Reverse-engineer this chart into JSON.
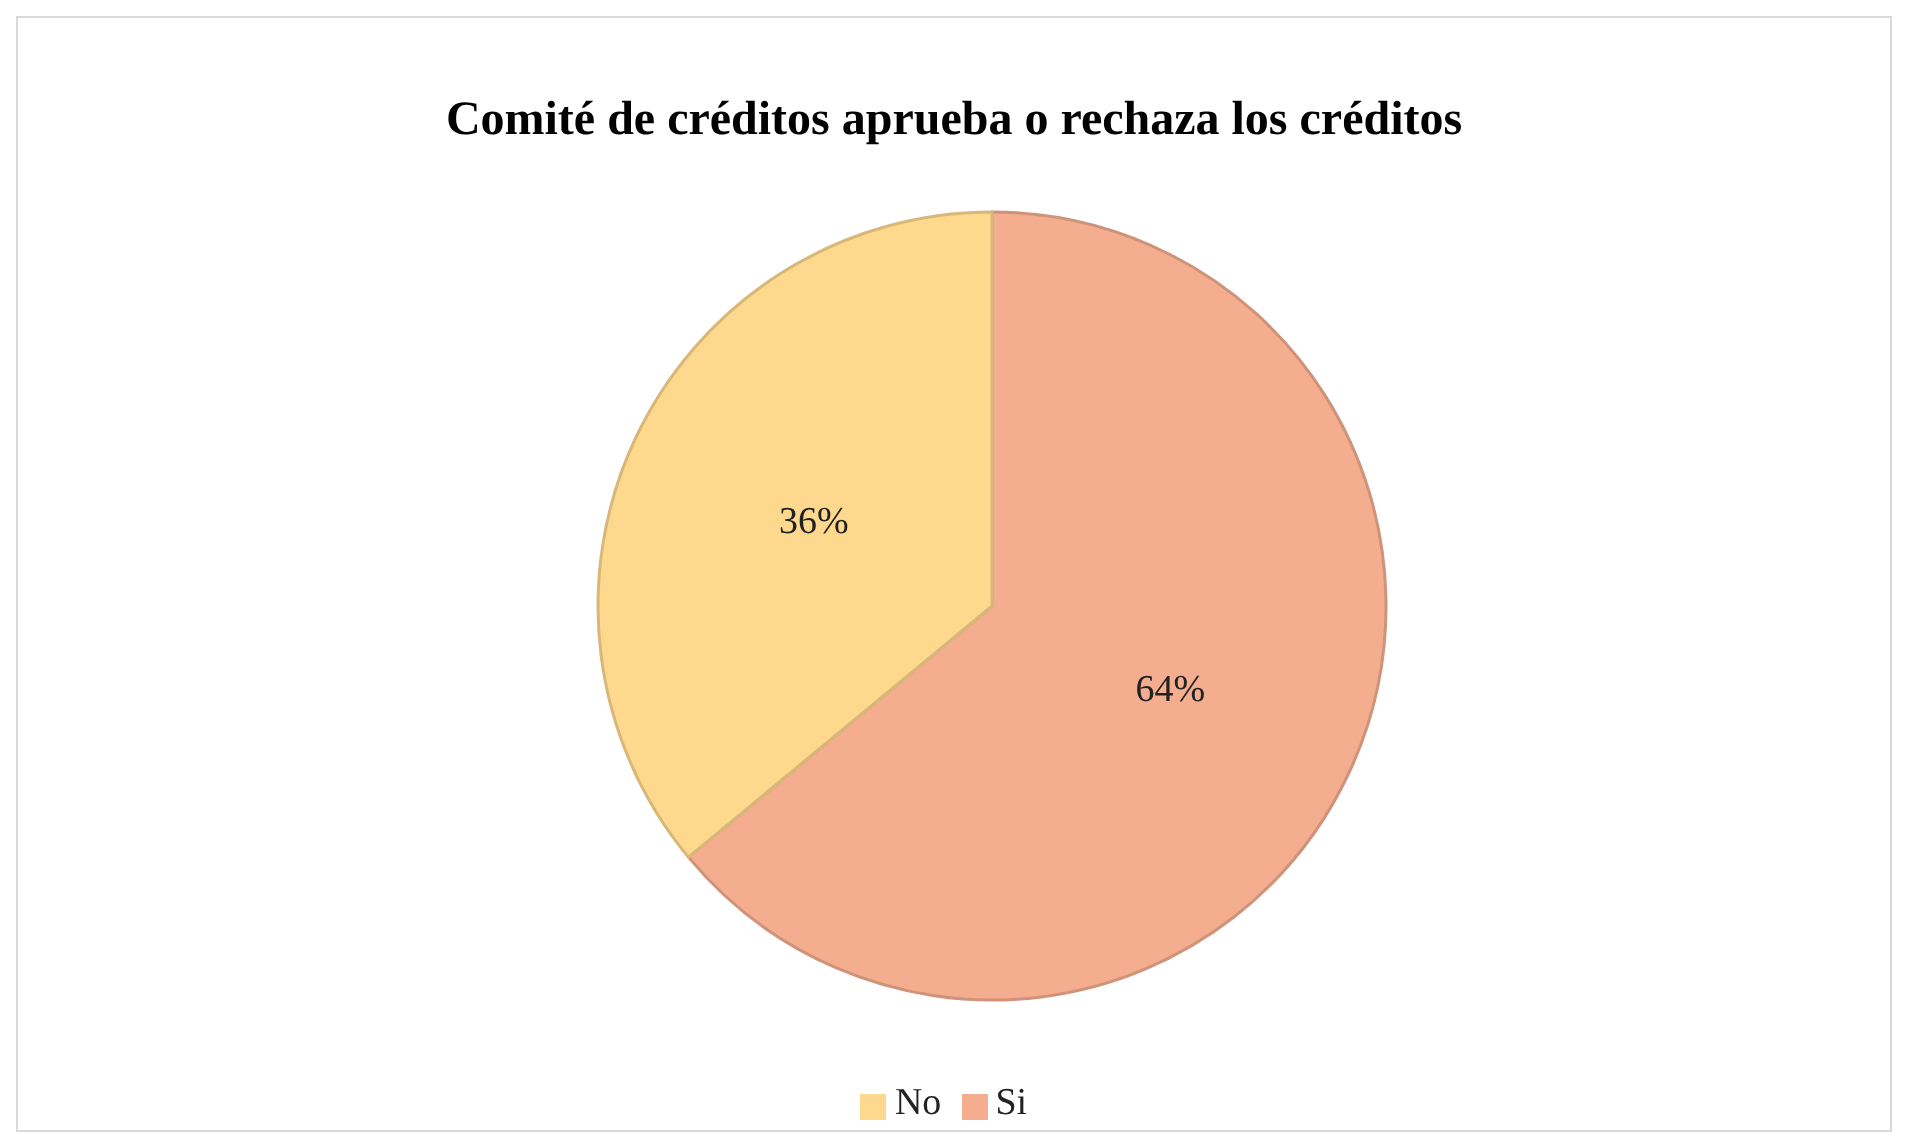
{
  "chart_data": {
    "type": "pie",
    "title": "Comité de créditos aprueba o rechaza los créditos",
    "categories": [
      "Si",
      "No"
    ],
    "values": [
      64,
      36
    ],
    "value_labels": [
      "64%",
      "36%"
    ],
    "colors": [
      "#f4ad8e",
      "#fed88d"
    ],
    "legend": "bottom"
  }
}
